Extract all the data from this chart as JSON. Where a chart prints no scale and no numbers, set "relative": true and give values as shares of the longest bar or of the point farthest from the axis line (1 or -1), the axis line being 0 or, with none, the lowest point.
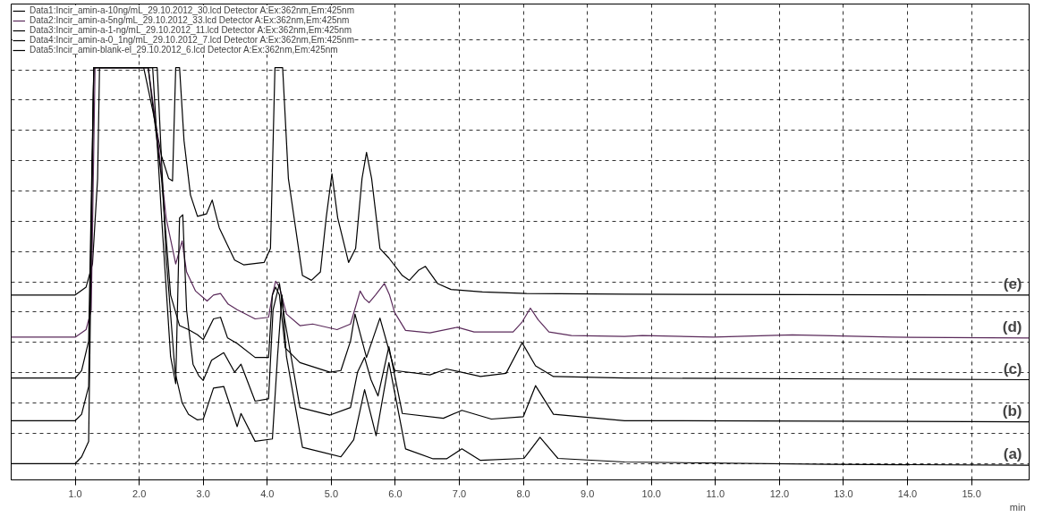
{
  "chart_data": {
    "type": "line",
    "relative": true,
    "xlabel": "min",
    "xlim": [
      0,
      15.9
    ],
    "xticks": [
      {
        "value": 1,
        "label": "1.0"
      },
      {
        "value": 2,
        "label": "2.0"
      },
      {
        "value": 3,
        "label": "3.0"
      },
      {
        "value": 4,
        "label": "4.0"
      },
      {
        "value": 5,
        "label": "5.0"
      },
      {
        "value": 6,
        "label": "6.0"
      },
      {
        "value": 7,
        "label": "7.0"
      },
      {
        "value": 8,
        "label": "8.0"
      },
      {
        "value": 9,
        "label": "9.0"
      },
      {
        "value": 10,
        "label": "10.0"
      },
      {
        "value": 11,
        "label": "11.0"
      },
      {
        "value": 12,
        "label": "12.0"
      },
      {
        "value": 13,
        "label": "13.0"
      },
      {
        "value": 14,
        "label": "14.0"
      },
      {
        "value": 15,
        "label": "15.0"
      }
    ],
    "grid": true,
    "legend": "top",
    "line_style": "solid",
    "marker": "none",
    "series": [
      {
        "name": "Data1:Incir_amin-a-10ng/mL_29.10.2012_30.lcd Detector A:Ex:362nm,Em:425nm",
        "color": "#000000",
        "x": [
          0,
          1.0,
          1.17,
          1.27,
          1.35,
          1.38,
          1.4,
          1.93,
          2.07,
          2.21,
          2.35,
          2.46,
          2.52,
          2.57,
          2.63,
          2.7,
          2.8,
          2.91,
          3.05,
          3.14,
          3.25,
          3.49,
          3.63,
          3.95,
          4.05,
          4.12,
          4.24,
          4.33,
          4.55,
          4.69,
          4.83,
          4.92,
          5.01,
          5.1,
          5.27,
          5.38,
          5.48,
          5.55,
          5.63,
          5.76,
          5.9,
          6.11,
          6.22,
          6.36,
          6.47,
          6.66,
          6.87,
          7.36,
          8.05,
          9.58,
          15.9
        ],
        "values": [
          0.428,
          0.428,
          0.448,
          0.506,
          0.721,
          1,
          1,
          1,
          1,
          0.893,
          0.777,
          0.721,
          0.715,
          1,
          1,
          0.816,
          0.68,
          0.626,
          0.632,
          0.667,
          0.597,
          0.516,
          0.504,
          0.51,
          0.545,
          1,
          1,
          0.721,
          0.477,
          0.465,
          0.486,
          0.622,
          0.733,
          0.622,
          0.51,
          0.545,
          0.721,
          0.787,
          0.721,
          0.545,
          0.521,
          0.477,
          0.465,
          0.49,
          0.5,
          0.457,
          0.442,
          0.436,
          0.432,
          0.43,
          0.428
        ]
      },
      {
        "name": "Data2:Incir_amin-a-5ng/mL_29.10.2012_33.lcd Detector A:Ex:362nm,Em:425nm",
        "color": "#5a2a5a",
        "x": [
          0,
          1.0,
          1.17,
          1.25,
          1.31,
          1.38,
          1.93,
          2.14,
          2.28,
          2.42,
          2.57,
          2.67,
          2.74,
          2.88,
          3.06,
          3.16,
          3.27,
          3.39,
          3.53,
          3.81,
          4.02,
          4.08,
          4.13,
          4.19,
          4.3,
          4.51,
          4.71,
          5.09,
          5.3,
          5.38,
          5.45,
          5.52,
          5.59,
          5.69,
          5.83,
          5.91,
          5.99,
          6.16,
          6.54,
          6.97,
          7.23,
          7.84,
          7.98,
          8.11,
          8.23,
          8.4,
          8.75,
          9.58,
          9.86,
          10.97,
          12.2,
          13.76,
          15.9
        ],
        "values": [
          0.322,
          0.322,
          0.341,
          0.39,
          1,
          1,
          1,
          1,
          0.835,
          0.622,
          0.506,
          0.564,
          0.486,
          0.438,
          0.413,
          0.428,
          0.432,
          0.405,
          0.391,
          0.368,
          0.372,
          0.428,
          0.463,
          0.448,
          0.38,
          0.351,
          0.355,
          0.341,
          0.355,
          0.399,
          0.438,
          0.419,
          0.409,
          0.428,
          0.457,
          0.428,
          0.384,
          0.339,
          0.333,
          0.347,
          0.335,
          0.335,
          0.36,
          0.395,
          0.366,
          0.335,
          0.326,
          0.324,
          0.326,
          0.322,
          0.328,
          0.322,
          0.32
        ]
      },
      {
        "name": "Data3:Incir_amin-a-1-ng/mL_29.10.2012_11.lcd Detector A:Ex:362nm,Em:425nm",
        "color": "#000000",
        "x": [
          0,
          1.0,
          1.1,
          1.21,
          1.29,
          1.38,
          1.93,
          2.14,
          2.35,
          2.49,
          2.63,
          2.77,
          2.91,
          3.0,
          3.16,
          3.27,
          3.38,
          3.53,
          3.81,
          4.02,
          4.08,
          4.13,
          4.19,
          4.28,
          4.51,
          4.98,
          5.15,
          5.3,
          5.37,
          5.55,
          5.76,
          5.99,
          6.54,
          6.8,
          7.33,
          7.73,
          7.98,
          8.19,
          8.47,
          9.58,
          15.9
        ],
        "values": [
          0.219,
          0.219,
          0.238,
          0.312,
          1,
          1,
          1,
          1,
          0.719,
          0.428,
          0.351,
          0.341,
          0.328,
          0.316,
          0.368,
          0.372,
          0.32,
          0.306,
          0.271,
          0.271,
          0.428,
          0.448,
          0.428,
          0.295,
          0.258,
          0.234,
          0.238,
          0.312,
          0.38,
          0.271,
          0.37,
          0.238,
          0.227,
          0.242,
          0.223,
          0.231,
          0.308,
          0.25,
          0.223,
          0.219,
          0.215
        ]
      },
      {
        "name": "Data4:Incir_amin-a-0_1ng/mL_29.10.2012_7.lcd Detector A:Ex:362nm,Em:425nm",
        "color": "#000000",
        "x": [
          0,
          1.0,
          1.1,
          1.21,
          1.29,
          1.38,
          1.93,
          2.21,
          2.35,
          2.49,
          2.57,
          2.63,
          2.68,
          2.74,
          2.84,
          2.93,
          3.0,
          3.13,
          3.32,
          3.49,
          3.59,
          3.81,
          4.02,
          4.09,
          4.19,
          4.27,
          4.51,
          4.98,
          5.3,
          5.41,
          5.52,
          5.62,
          5.73,
          5.9,
          6.11,
          6.75,
          7.04,
          7.5,
          8.0,
          8.19,
          8.47,
          9.58,
          15.9
        ],
        "values": [
          0.112,
          0.112,
          0.128,
          0.198,
          1,
          1,
          1,
          1,
          0.622,
          0.273,
          0.205,
          0.622,
          0.63,
          0.39,
          0.254,
          0.225,
          0.213,
          0.264,
          0.283,
          0.234,
          0.254,
          0.161,
          0.167,
          0.39,
          0.457,
          0.368,
          0.145,
          0.126,
          0.145,
          0.234,
          0.271,
          0.215,
          0.174,
          0.298,
          0.13,
          0.118,
          0.138,
          0.116,
          0.122,
          0.2,
          0.128,
          0.112,
          0.109
        ]
      },
      {
        "name": "Data5:Incir_amin-blank-el_29.10.2012_6.lcd Detector A:Ex:362nm,Em:425nm",
        "color": "#000000",
        "x": [
          0,
          1.0,
          1.1,
          1.21,
          1.29,
          1.38,
          1.93,
          2.28,
          2.42,
          2.56,
          2.67,
          2.77,
          2.91,
          3.0,
          3.16,
          3.32,
          3.53,
          3.59,
          3.81,
          4.08,
          4.16,
          4.23,
          4.3,
          4.55,
          5.15,
          5.35,
          5.52,
          5.7,
          5.9,
          6.16,
          6.59,
          6.8,
          7.04,
          7.33,
          8.01,
          8.26,
          8.54,
          9.58,
          12.78,
          15.9
        ],
        "values": [
          0.004,
          0.004,
          0.021,
          0.06,
          1,
          1,
          1,
          1,
          0.525,
          0.234,
          0.157,
          0.128,
          0.114,
          0.116,
          0.194,
          0.198,
          0.097,
          0.13,
          0.06,
          0.066,
          0.273,
          0.428,
          0.273,
          0.045,
          0.021,
          0.064,
          0.19,
          0.074,
          0.258,
          0.041,
          0.016,
          0.016,
          0.041,
          0.012,
          0.017,
          0.07,
          0.017,
          0.008,
          0.002,
          0
        ]
      }
    ],
    "annotations": [
      "(e)",
      "(d)",
      "(c)",
      "(b)",
      "(a)"
    ]
  }
}
